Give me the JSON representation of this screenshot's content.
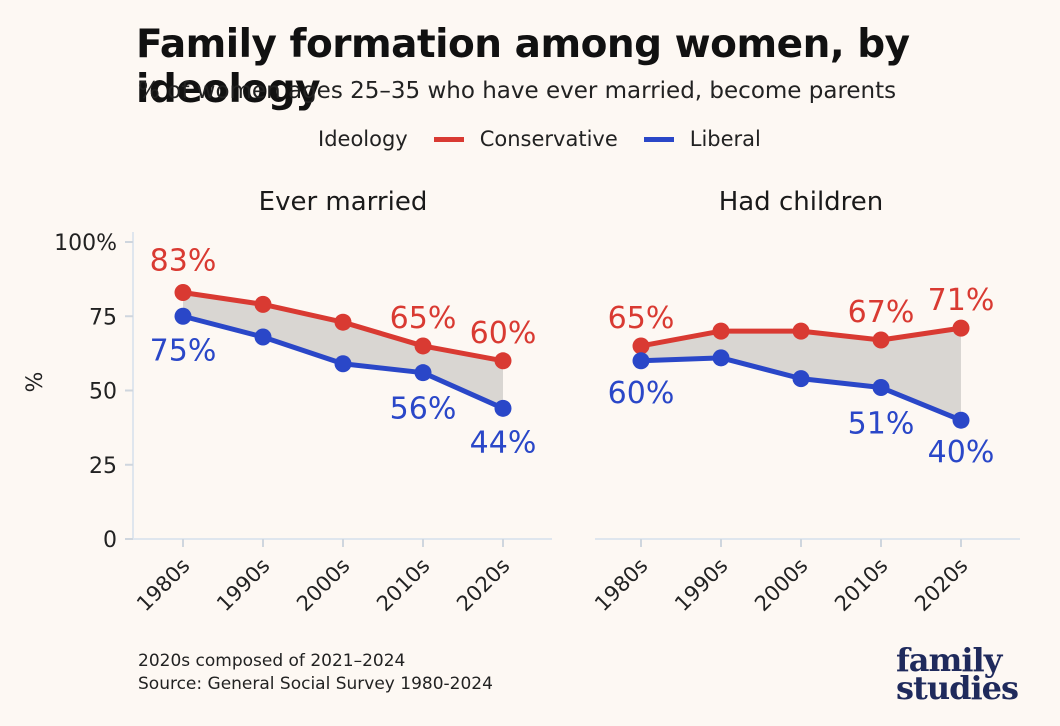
{
  "title": "Family formation among women, by ideology",
  "subtitle": "% of women ages 25–35 who have ever married, become parents",
  "legend": {
    "title": "Ideology",
    "items": [
      {
        "label": "Conservative",
        "color": "#d93a32"
      },
      {
        "label": "Liberal",
        "color": "#2a47c8"
      }
    ]
  },
  "footnote": {
    "line1": "2020s composed of 2021–2024",
    "line2": "Source: General Social Survey 1980-2024"
  },
  "logo": {
    "line1": "family",
    "line2": "studies"
  },
  "chart_data": [
    {
      "type": "line",
      "title": "Ever married",
      "ylabel": "%",
      "ylim": [
        0,
        100
      ],
      "yticks": [
        0,
        25,
        50,
        75,
        100
      ],
      "ytick_labels": [
        "0",
        "25",
        "50",
        "75",
        "100%"
      ],
      "categories": [
        "1980s",
        "1990s",
        "2000s",
        "2010s",
        "2020s"
      ],
      "series": [
        {
          "name": "Conservative",
          "color": "#d93a32",
          "values": [
            83,
            79,
            73,
            65,
            60
          ],
          "labels": [
            "83%",
            null,
            null,
            "65%",
            "60%"
          ]
        },
        {
          "name": "Liberal",
          "color": "#2a47c8",
          "values": [
            75,
            68,
            59,
            56,
            44
          ],
          "labels": [
            "75%",
            null,
            null,
            "56%",
            "44%"
          ]
        }
      ],
      "gap_fill": "#d9d6d2"
    },
    {
      "type": "line",
      "title": "Had children",
      "ylim": [
        0,
        100
      ],
      "categories": [
        "1980s",
        "1990s",
        "2000s",
        "2010s",
        "2020s"
      ],
      "series": [
        {
          "name": "Conservative",
          "color": "#d93a32",
          "values": [
            65,
            70,
            70,
            67,
            71
          ],
          "labels": [
            "65%",
            null,
            null,
            "67%",
            "71%"
          ]
        },
        {
          "name": "Liberal",
          "color": "#2a47c8",
          "values": [
            60,
            61,
            54,
            51,
            40
          ],
          "labels": [
            "60%",
            null,
            null,
            "51%",
            "40%"
          ]
        }
      ],
      "gap_fill": "#d9d6d2"
    }
  ]
}
